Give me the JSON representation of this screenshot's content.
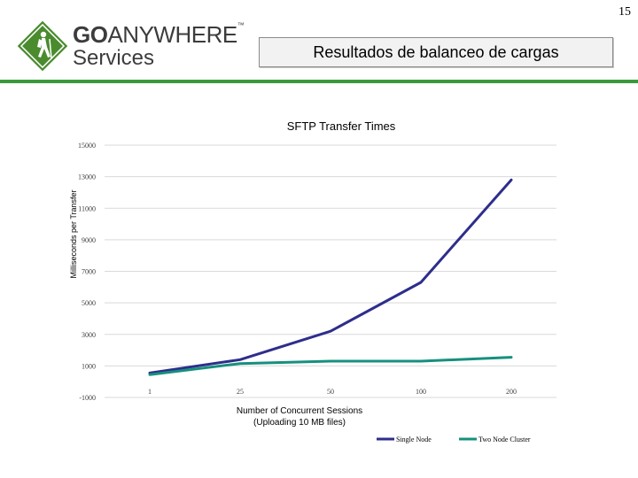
{
  "page_number": "15",
  "logo": {
    "word_go": "GO",
    "word_anywhere": "ANYWHERE",
    "trademark": "™",
    "word_services": "Services"
  },
  "slide_title": "Resultados de balanceo de cargas",
  "colors": {
    "accent_rule": "#3a9a3a",
    "logo_green": "#4a8b2e",
    "single_node": "#2e2e8c",
    "two_node": "#16907e"
  },
  "chart_data": {
    "type": "line",
    "title": "SFTP Transfer Times",
    "xlabel": "Number of Concurrent Sessions",
    "xlabel_sub": "(Uploading 10 MB files)",
    "ylabel": "Milliseconds per Transfer",
    "categories": [
      "1",
      "25",
      "50",
      "100",
      "200"
    ],
    "ylim": [
      -1000,
      15000
    ],
    "yticks": [
      "15000",
      "13000",
      "11000",
      "9000",
      "7000",
      "5000",
      "3000",
      "1000",
      "-1000"
    ],
    "grid": true,
    "legend_position": "bottom",
    "series": [
      {
        "name": "Single Node",
        "color": "#2e2e8c",
        "values": [
          550,
          1400,
          3200,
          6300,
          12800
        ]
      },
      {
        "name": "Two Node Cluster",
        "color": "#16907e",
        "values": [
          450,
          1150,
          1300,
          1300,
          1550
        ]
      }
    ]
  }
}
